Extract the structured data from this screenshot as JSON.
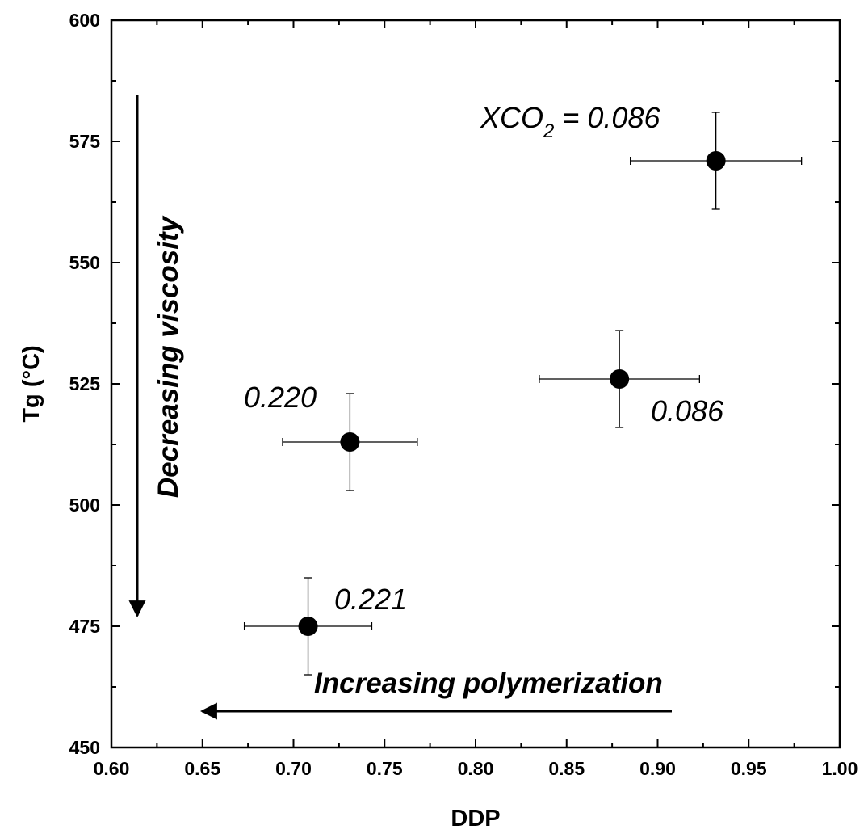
{
  "chart_data": {
    "type": "scatter",
    "xlabel": "DDP",
    "ylabel": "Tg (°C)",
    "xlim": [
      0.6,
      1.0
    ],
    "ylim": [
      450,
      600
    ],
    "x_ticks": [
      "0.60",
      "0.65",
      "0.70",
      "0.75",
      "0.80",
      "0.85",
      "0.90",
      "0.95",
      "1.00"
    ],
    "y_ticks": [
      "450",
      "475",
      "500",
      "525",
      "550",
      "575",
      "600"
    ],
    "grid": false,
    "points": [
      {
        "x": 0.932,
        "y": 571,
        "xerr": 0.047,
        "yerr": 10
      },
      {
        "x": 0.879,
        "y": 526,
        "xerr": 0.044,
        "yerr": 10
      },
      {
        "x": 0.731,
        "y": 513,
        "xerr": 0.037,
        "yerr": 10
      },
      {
        "x": 0.708,
        "y": 475,
        "xerr": 0.035,
        "yerr": 10
      }
    ],
    "annotations": {
      "p1_prefix": "XCO",
      "p1_sub": "2",
      "p1_value": " = 0.086",
      "p2": "0.086",
      "p3": "0.220",
      "p4": "0.221",
      "vertical_arrow_label": "Decreasing viscosity",
      "horizontal_arrow_label": "Increasing polymerization"
    },
    "colors": {
      "marker": "#000000",
      "axis": "#000000"
    }
  }
}
